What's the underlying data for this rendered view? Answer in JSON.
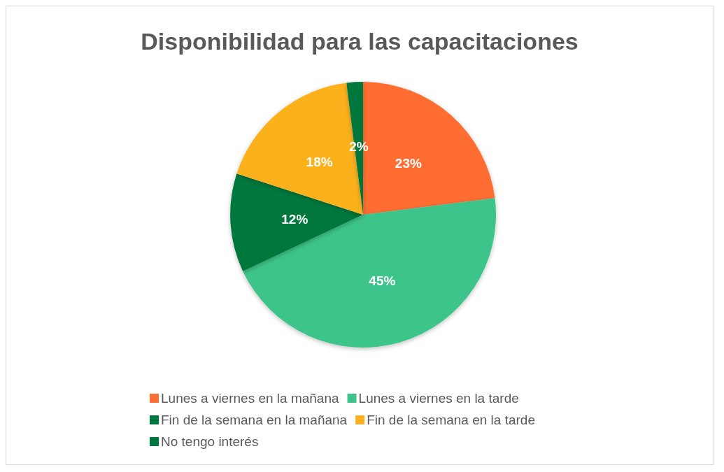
{
  "chart_data": {
    "type": "pie",
    "title": "Disponibilidad para las capacitaciones",
    "categories": [
      "Lunes a viernes en la mañana",
      "Lunes a viernes en la tarde",
      "Fin de la semana en la mañana",
      "Fin de la semana en la tarde",
      "No tengo interés"
    ],
    "values": [
      23,
      45,
      12,
      18,
      2
    ],
    "colors": [
      "#ff6d33",
      "#3ec48a",
      "#00773d",
      "#fbb11f",
      "#00773d"
    ],
    "value_labels": [
      "23%",
      "45%",
      "12%",
      "18%",
      "2%"
    ],
    "legend": "bottom"
  }
}
